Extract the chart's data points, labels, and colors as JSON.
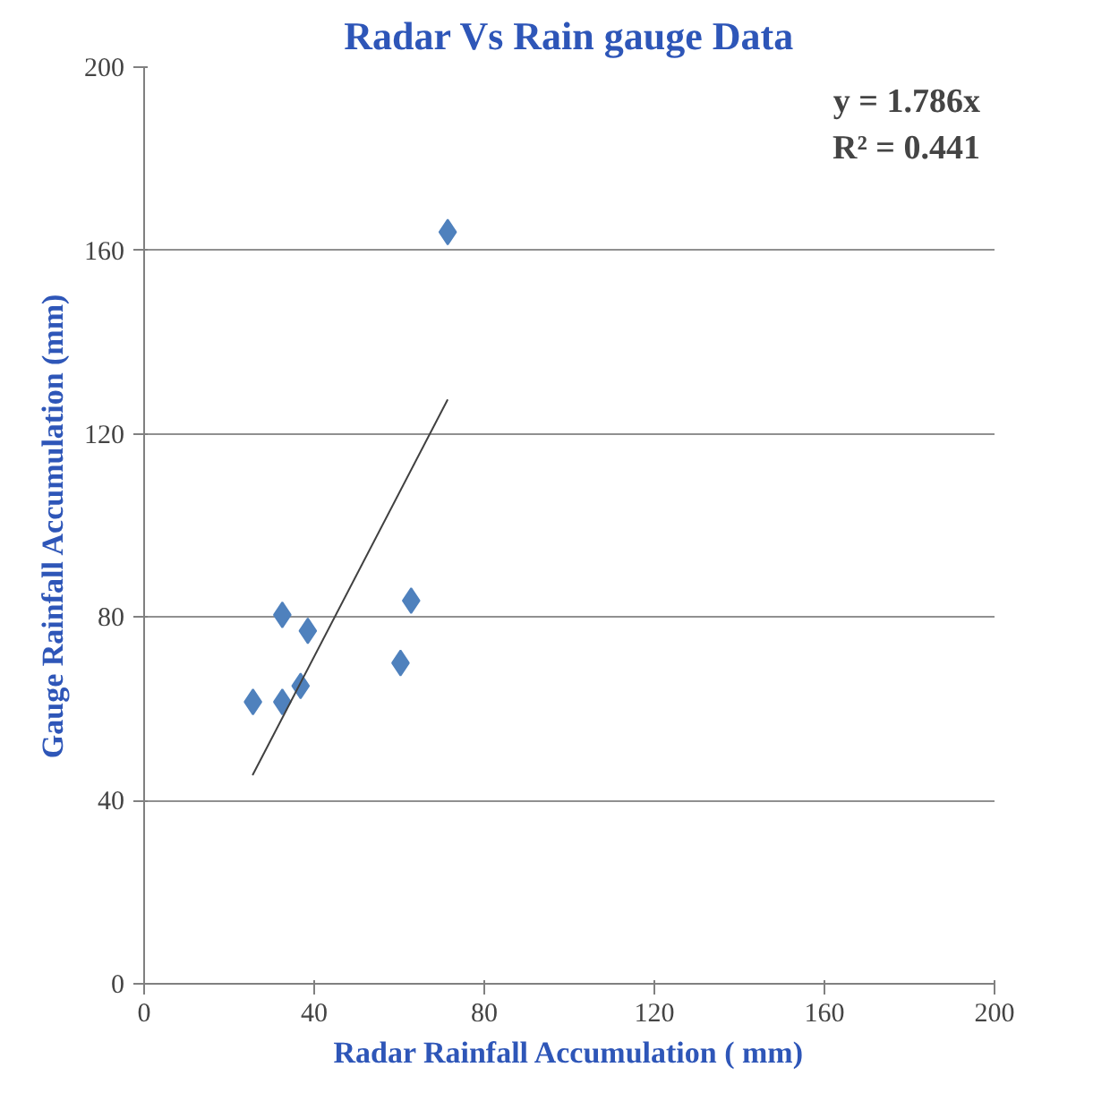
{
  "chart_data": {
    "type": "scatter",
    "title": "Radar Vs Rain gauge Data",
    "xlabel": "Radar Rainfall Accumulation ( mm)",
    "ylabel": "Gauge Rainfall Accumulation (mm)",
    "xlim": [
      0,
      200
    ],
    "ylim": [
      0,
      200
    ],
    "xticks": [
      0,
      40,
      80,
      120,
      160,
      200
    ],
    "yticks": [
      0,
      40,
      80,
      120,
      160,
      200
    ],
    "grid": "y",
    "series": [
      {
        "marker": "diamond",
        "color": "#4f81bd",
        "x": [
          25.6,
          32.5,
          32.5,
          36.8,
          38.5,
          60.3,
          62.8,
          71.4
        ],
        "values": [
          61.5,
          80.5,
          61.5,
          65,
          77,
          70,
          83.6,
          164
        ]
      },
      {
        "type": "line",
        "marker": "none",
        "color": "#404040",
        "x": [
          25.5,
          71.4
        ],
        "values": [
          45.5,
          127.5
        ]
      }
    ],
    "annotations": [
      "y = 1.786x",
      "R² = 0.441"
    ]
  }
}
